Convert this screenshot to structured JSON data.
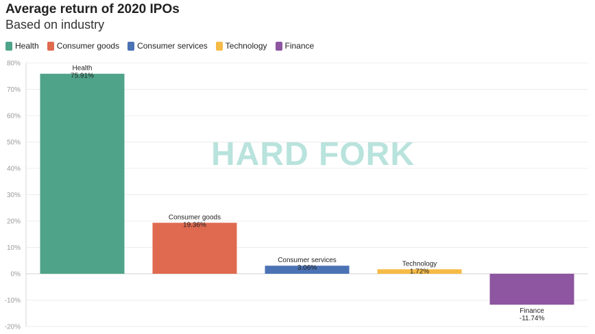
{
  "title": "Average return of 2020 IPOs",
  "subtitle": "Based on industry",
  "watermark": "HARD FORK",
  "chart_data": {
    "type": "bar",
    "title": "Average return of 2020 IPOs",
    "subtitle": "Based on industry",
    "categories": [
      "Health",
      "Consumer goods",
      "Consumer services",
      "Technology",
      "Finance"
    ],
    "values": [
      75.91,
      19.36,
      3.06,
      1.72,
      -11.74
    ],
    "value_labels": [
      "75.91%",
      "19.36%",
      "3.06%",
      "1.72%",
      "-11.74%"
    ],
    "colors": [
      "#4ea389",
      "#df6a50",
      "#4a72b5",
      "#f6bb46",
      "#8e55a0"
    ],
    "ylim": [
      -20,
      80
    ],
    "yticks": [
      80,
      70,
      60,
      50,
      40,
      30,
      20,
      10,
      0,
      -10,
      -20
    ],
    "ytick_labels": [
      "80%",
      "70%",
      "60%",
      "50%",
      "40%",
      "30%",
      "20%",
      "10%",
      "0%",
      "-10%",
      "-20%"
    ],
    "grid": true,
    "legend": {
      "position": "top-left",
      "entries": [
        "Health",
        "Consumer goods",
        "Consumer services",
        "Technology",
        "Finance"
      ]
    }
  }
}
